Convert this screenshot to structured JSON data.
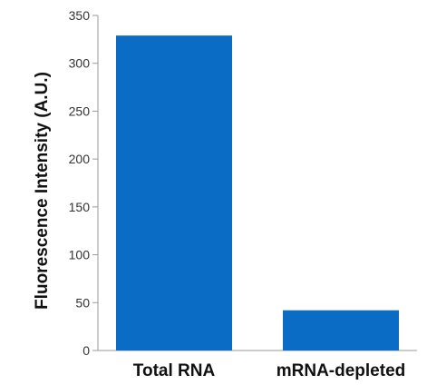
{
  "chart_data": {
    "type": "bar",
    "title": "",
    "xlabel": "",
    "ylabel": "Fluorescence Intensity (A.U.)",
    "categories": [
      "Total RNA",
      "mRNA-depleted"
    ],
    "values": [
      329,
      42
    ],
    "ylim": [
      0,
      350
    ],
    "yticks": [
      0,
      50,
      100,
      150,
      200,
      250,
      300,
      350
    ],
    "grid": false,
    "legend": "none",
    "bar_color": "#0a6cc4",
    "axis_color": "#999999"
  }
}
